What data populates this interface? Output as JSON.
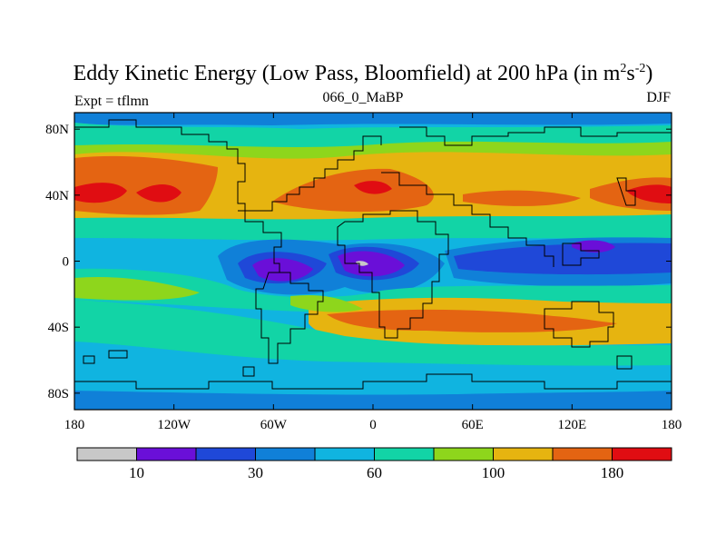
{
  "chart_data": {
    "type": "heatmap",
    "title_main": "Eddy Kinetic Energy (Low Pass, Bloomfield) at 200 hPa (in m",
    "title_sup1": "2",
    "title_mid": "s",
    "title_sup2": "-2",
    "title_end": ")",
    "left_string": "Expt = tflmn",
    "center_string": "066_0_MaBP",
    "right_string": "DJF",
    "x_ticks": [
      {
        "value": -180,
        "label": "180"
      },
      {
        "value": -120,
        "label": "120W"
      },
      {
        "value": -60,
        "label": "60W"
      },
      {
        "value": 0,
        "label": "0"
      },
      {
        "value": 60,
        "label": "60E"
      },
      {
        "value": 120,
        "label": "120E"
      },
      {
        "value": 180,
        "label": "180"
      }
    ],
    "y_ticks": [
      {
        "value": 80,
        "label": "80N"
      },
      {
        "value": 40,
        "label": "40N"
      },
      {
        "value": 0,
        "label": "0"
      },
      {
        "value": -40,
        "label": "40S"
      },
      {
        "value": -80,
        "label": "80S"
      }
    ],
    "xlim": [
      -180,
      180
    ],
    "ylim": [
      -90,
      90
    ],
    "colorbar": {
      "colors": [
        "#c8c8c8",
        "#6a0fd8",
        "#1f48d8",
        "#1080d8",
        "#10b4e0",
        "#12d4a6",
        "#8ed61c",
        "#e6b410",
        "#e46412",
        "#e00d12"
      ],
      "labels": [
        {
          "boundary": 1,
          "text": "10"
        },
        {
          "boundary": 3,
          "text": "30"
        },
        {
          "boundary": 5,
          "text": "60"
        },
        {
          "boundary": 7,
          "text": "100"
        },
        {
          "boundary": 9,
          "text": "180"
        }
      ]
    },
    "field_centers": [
      {
        "lon": -135,
        "lat": 43,
        "level": 9
      },
      {
        "lon": -155,
        "lat": 38,
        "level": 9
      },
      {
        "lon": 0,
        "lat": 42,
        "level": 9
      },
      {
        "lon": 170,
        "lat": 40,
        "level": 9
      },
      {
        "lon": -50,
        "lat": -6,
        "level": 1
      },
      {
        "lon": 5,
        "lat": 0,
        "level": 0
      },
      {
        "lon": 140,
        "lat": 8,
        "level": 1
      },
      {
        "lon": 50,
        "lat": -38,
        "level": 8
      },
      {
        "lon": 130,
        "lat": -38,
        "level": 8
      }
    ]
  }
}
